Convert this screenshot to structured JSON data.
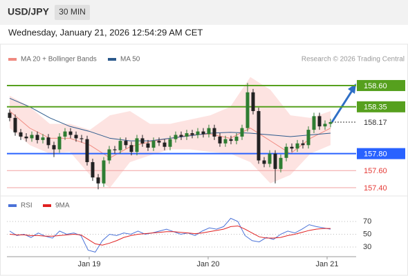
{
  "header": {
    "symbol": "USD/JPY",
    "interval": "30 MIN",
    "datetime": "Wednesday, January 21, 2026 12:54:29 AM CET"
  },
  "chart_data": {
    "type": "candlestick",
    "legend": [
      {
        "name": "MA 20 + Bollinger Bands",
        "color": "#f08a80"
      },
      {
        "name": "MA 50",
        "color": "#2c5a8c"
      }
    ],
    "credit": "Research © 2026 Trading Central",
    "ylim": [
      157.3,
      158.8
    ],
    "up_color": "#2e7d32",
    "down_color": "#222222",
    "open": [
      158.28,
      158.22,
      158.05,
      158.0,
      157.98,
      158.02,
      157.96,
      157.99,
      157.9,
      157.85,
      158.0,
      158.06,
      158.02,
      157.98,
      157.97,
      157.7,
      157.52,
      157.45,
      157.72,
      157.85,
      157.84,
      157.95,
      157.9,
      157.82,
      157.98,
      157.92,
      157.87,
      157.95,
      157.93,
      157.88,
      157.97,
      158.02,
      158.0,
      158.04,
      158.02,
      158.06,
      158.03,
      158.1,
      158.0,
      157.92,
      157.97,
      157.95,
      158.0,
      158.1,
      158.52,
      158.3,
      157.72,
      157.68,
      157.8,
      157.62,
      157.75,
      157.88,
      157.86,
      157.92,
      157.9,
      158.08,
      158.24,
      158.12,
      158.15
    ],
    "high": [
      158.32,
      158.26,
      158.09,
      158.04,
      158.06,
      158.06,
      158.03,
      158.03,
      157.94,
      158.04,
      158.1,
      158.1,
      158.06,
      158.02,
      158.01,
      157.74,
      157.56,
      157.76,
      157.89,
      157.89,
      157.99,
      157.99,
      157.94,
      158.02,
      158.02,
      157.96,
      157.99,
      157.99,
      157.97,
      158.01,
      158.06,
      158.06,
      158.08,
      158.08,
      158.1,
      158.1,
      158.14,
      158.14,
      158.04,
      158.01,
      158.01,
      158.04,
      158.14,
      158.63,
      158.56,
      158.34,
      157.76,
      157.84,
      157.84,
      157.79,
      157.92,
      157.92,
      157.96,
      157.96,
      158.12,
      158.28,
      158.28,
      158.19,
      158.21
    ],
    "low": [
      158.18,
      158.01,
      157.96,
      157.94,
      157.94,
      157.92,
      157.92,
      157.86,
      157.76,
      157.81,
      157.96,
      157.98,
      157.94,
      157.93,
      157.66,
      157.48,
      157.38,
      157.41,
      157.68,
      157.8,
      157.8,
      157.86,
      157.78,
      157.78,
      157.88,
      157.83,
      157.83,
      157.89,
      157.84,
      157.84,
      157.93,
      157.96,
      157.96,
      157.98,
      157.98,
      157.99,
      157.99,
      157.96,
      157.88,
      157.88,
      157.91,
      157.91,
      157.96,
      158.06,
      158.26,
      157.68,
      157.64,
      157.64,
      157.45,
      157.58,
      157.71,
      157.82,
      157.82,
      157.86,
      157.86,
      158.04,
      158.08,
      158.08,
      158.11
    ],
    "close": [
      158.22,
      158.05,
      158.0,
      157.98,
      158.02,
      157.96,
      157.99,
      157.9,
      157.85,
      158.0,
      158.06,
      158.02,
      157.98,
      157.97,
      157.7,
      157.52,
      157.45,
      157.72,
      157.85,
      157.84,
      157.95,
      157.9,
      157.82,
      157.98,
      157.92,
      157.87,
      157.95,
      157.93,
      157.88,
      157.97,
      158.02,
      158.0,
      158.04,
      158.02,
      158.06,
      158.03,
      158.1,
      158.0,
      157.92,
      157.97,
      157.95,
      158.0,
      158.1,
      158.52,
      158.3,
      157.72,
      157.68,
      157.8,
      157.62,
      157.75,
      157.88,
      157.86,
      157.92,
      157.9,
      158.08,
      158.24,
      158.12,
      158.15,
      158.17
    ],
    "ma20": [
      158.3,
      158.1,
      157.98,
      157.98,
      157.9,
      157.75,
      157.88,
      157.94,
      157.98,
      158.02,
      158.03,
      157.98,
      158.1,
      157.95,
      157.8,
      157.98,
      158.1
    ],
    "bb_upper": [
      158.48,
      158.35,
      158.15,
      158.15,
      158.08,
      158.25,
      158.3,
      158.15,
      158.15,
      158.2,
      158.25,
      158.35,
      158.7,
      158.55,
      158.25,
      158.22,
      158.3
    ],
    "bb_lower": [
      158.1,
      157.9,
      157.8,
      157.82,
      157.55,
      157.4,
      157.7,
      157.78,
      157.85,
      157.85,
      157.82,
      157.8,
      157.7,
      157.45,
      157.55,
      157.8,
      157.9
    ],
    "ma50": [
      158.45,
      158.35,
      158.22,
      158.12,
      158.06,
      157.98,
      157.95,
      157.95,
      157.98,
      158.01,
      158.04,
      158.05,
      158.04,
      158.02,
      158.0,
      158.02,
      158.04
    ],
    "levels": [
      {
        "value": 158.6,
        "label": "158.60",
        "color": "#56a01e",
        "style": "box"
      },
      {
        "value": 158.35,
        "label": "158.35",
        "color": "#56a01e",
        "style": "box"
      },
      {
        "value": 158.17,
        "label": "158.17",
        "color": "#333333",
        "style": "current"
      },
      {
        "value": 157.8,
        "label": "157.80",
        "color": "#2962ff",
        "style": "box"
      },
      {
        "value": 157.6,
        "label": "157.60",
        "color": "#e53935",
        "style": "text"
      },
      {
        "value": 157.4,
        "label": "157.40",
        "color": "#e53935",
        "style": "text"
      }
    ],
    "xlabels": [
      "Jan 19",
      "Jan 20",
      "Jan 21"
    ],
    "rsi": {
      "legend": [
        {
          "name": "RSI",
          "color": "#4a72d8"
        },
        {
          "name": "9MA",
          "color": "#e02020"
        }
      ],
      "ylim": [
        20,
        80
      ],
      "yticks": [
        70,
        50,
        30
      ],
      "rsi_values": [
        55,
        48,
        50,
        45,
        52,
        47,
        44,
        55,
        50,
        52,
        48,
        25,
        22,
        40,
        50,
        48,
        52,
        50,
        55,
        50,
        52,
        55,
        58,
        54,
        50,
        52,
        48,
        55,
        60,
        58,
        62,
        75,
        70,
        48,
        40,
        38,
        45,
        42,
        50,
        55,
        52,
        58,
        65,
        62,
        60,
        58
      ],
      "ma_values": [
        50,
        49,
        49,
        48,
        48,
        47,
        47,
        48,
        49,
        50,
        49,
        42,
        35,
        33,
        36,
        40,
        45,
        48,
        50,
        51,
        52,
        53,
        54,
        54,
        53,
        52,
        51,
        52,
        54,
        56,
        58,
        62,
        63,
        58,
        52,
        46,
        44,
        44,
        45,
        48,
        50,
        53,
        56,
        58,
        59,
        59
      ]
    }
  }
}
